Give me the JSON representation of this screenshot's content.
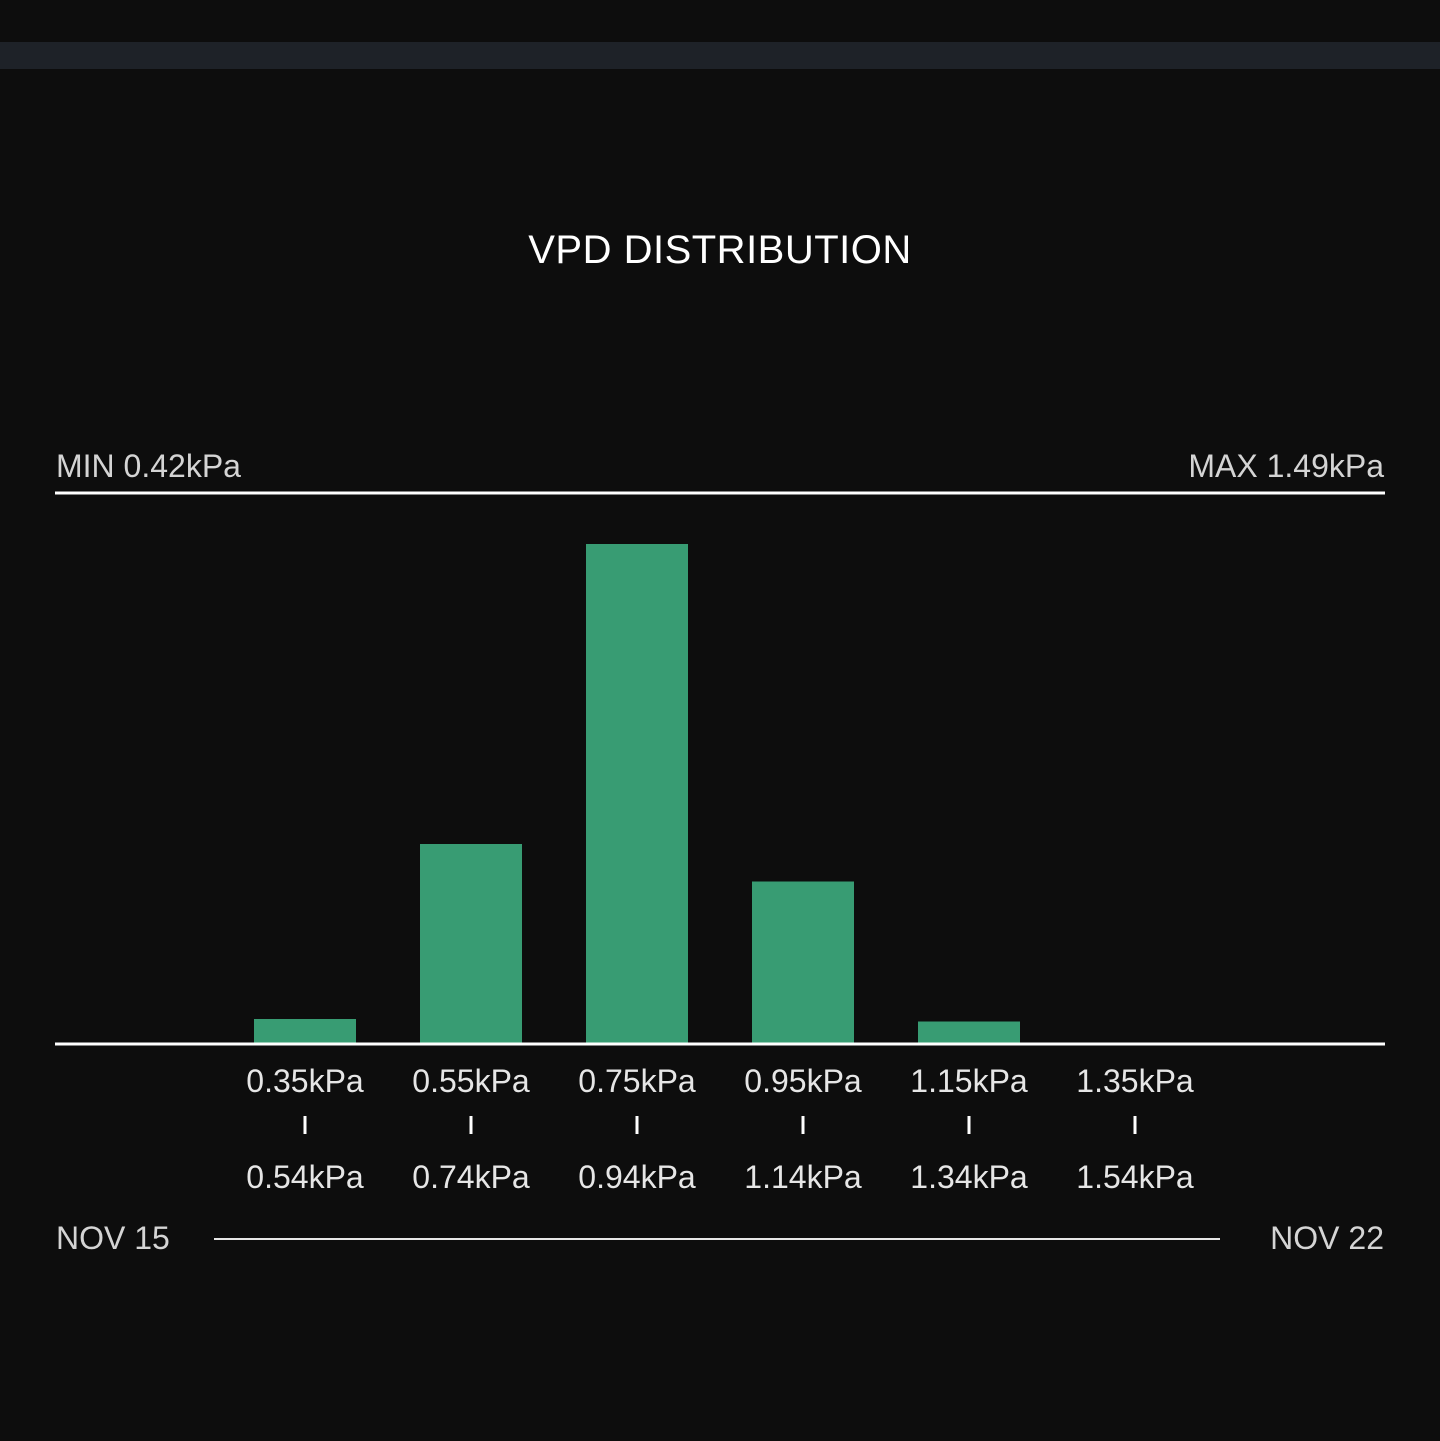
{
  "header": {
    "title": "VPD DISTRIBUTION",
    "min_label": "MIN 0.42kPa",
    "max_label": "MAX 1.49kPa"
  },
  "footer": {
    "date_start": "NOV 15",
    "date_end": "NOV 22"
  },
  "colors": {
    "background": "#0d0d0d",
    "top_bar": "#1e2228",
    "bar": "#389c73",
    "axis": "#ffffff",
    "text": "#e6e6e6"
  },
  "chart_data": {
    "type": "bar",
    "title": "VPD DISTRIBUTION",
    "xlabel": "",
    "ylabel": "",
    "bins": [
      {
        "low": "0.35kPa",
        "high": "0.54kPa"
      },
      {
        "low": "0.55kPa",
        "high": "0.74kPa"
      },
      {
        "low": "0.75kPa",
        "high": "0.94kPa"
      },
      {
        "low": "0.95kPa",
        "high": "1.14kPa"
      },
      {
        "low": "1.15kPa",
        "high": "1.34kPa"
      },
      {
        "low": "1.35kPa",
        "high": "1.54kPa"
      }
    ],
    "values": [
      5,
      40,
      100,
      32.5,
      4.5,
      0.3
    ],
    "ylim": [
      0,
      100
    ],
    "grid": false,
    "legend": "none"
  }
}
